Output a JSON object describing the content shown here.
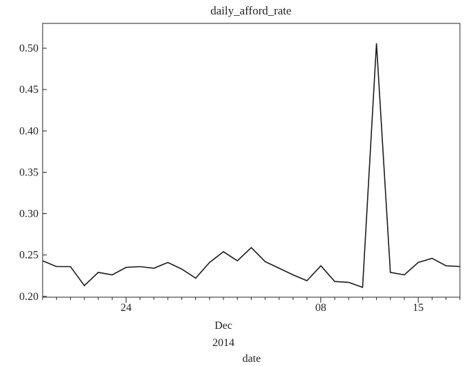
{
  "chart_data": {
    "type": "line",
    "title": "daily_afford_rate",
    "xlabel": "date",
    "x_subtitles": [
      "Dec",
      "2014"
    ],
    "ylabel": "",
    "ylim": [
      0.199,
      0.53
    ],
    "yticks": [
      "0.20",
      "0.25",
      "0.30",
      "0.35",
      "0.40",
      "0.45",
      "0.50"
    ],
    "ytick_values": [
      0.2,
      0.25,
      0.3,
      0.35,
      0.4,
      0.45,
      0.5
    ],
    "xticks": [
      {
        "label": "24",
        "date": "2014-11-24"
      },
      {
        "label": "08",
        "date": "2014-12-08"
      },
      {
        "label": "15",
        "date": "2014-12-15"
      }
    ],
    "x_range": [
      "2014-11-18",
      "2014-12-18"
    ],
    "grid": false,
    "line_color": "#1a1a1a",
    "series": [
      {
        "x": [
          "2014-11-18",
          "2014-11-19",
          "2014-11-20",
          "2014-11-21",
          "2014-11-22",
          "2014-11-23",
          "2014-11-24",
          "2014-11-25",
          "2014-11-26",
          "2014-11-27",
          "2014-11-28",
          "2014-11-29",
          "2014-11-30",
          "2014-12-01",
          "2014-12-02",
          "2014-12-03",
          "2014-12-04",
          "2014-12-05",
          "2014-12-06",
          "2014-12-07",
          "2014-12-08",
          "2014-12-09",
          "2014-12-10",
          "2014-12-11",
          "2014-12-12",
          "2014-12-13",
          "2014-12-14",
          "2014-12-15",
          "2014-12-16",
          "2014-12-17",
          "2014-12-18"
        ],
        "values": [
          0.243,
          0.236,
          0.236,
          0.213,
          0.229,
          0.226,
          0.235,
          0.236,
          0.234,
          0.241,
          0.233,
          0.222,
          0.241,
          0.254,
          0.243,
          0.259,
          0.242,
          0.234,
          0.226,
          0.219,
          0.237,
          0.218,
          0.217,
          0.211,
          0.506,
          0.229,
          0.226,
          0.241,
          0.246,
          0.237,
          0.236
        ]
      }
    ]
  }
}
